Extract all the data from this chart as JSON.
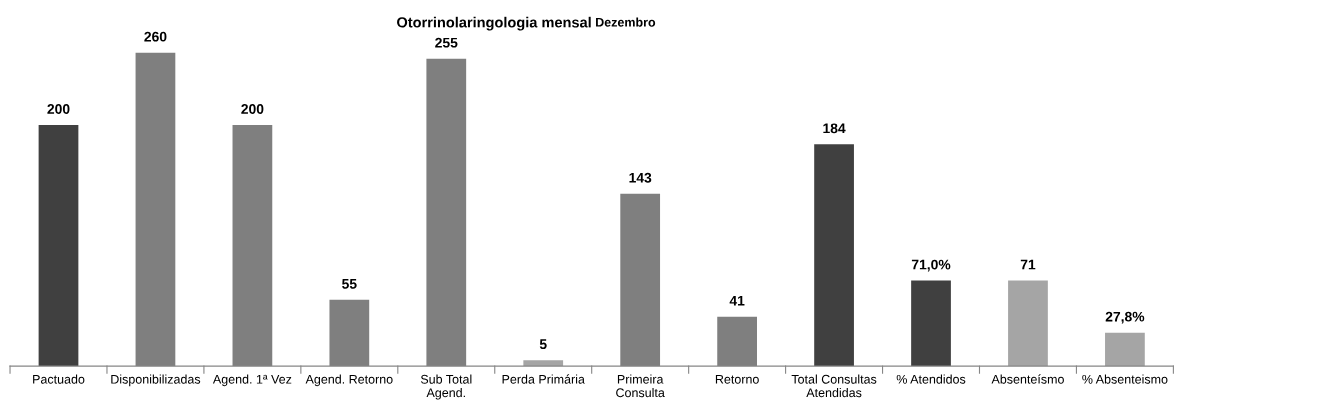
{
  "chart_data": {
    "type": "bar",
    "title": "Otorrinolaringologia mensal",
    "subtitle": "Dezembro",
    "categories": [
      "Pactuado",
      "Disponibilizadas",
      "Agend. 1ª Vez",
      "Agend. Retorno",
      "Sub Total\nAgend.",
      "Perda Primária",
      "Primeira\nConsulta",
      "Retorno",
      "Total Consultas\nAtendidas",
      "% Atendidos",
      "Absenteísmo",
      "% Absenteismo"
    ],
    "values": [
      200,
      260,
      200,
      55,
      255,
      5,
      143,
      41,
      184,
      71.0,
      71,
      27.8
    ],
    "value_labels": [
      "200",
      "260",
      "200",
      "55",
      "255",
      "5",
      "143",
      "41",
      "184",
      "71,0%",
      "71",
      "27,8%"
    ],
    "colors": [
      "#404040",
      "#7f7f7f",
      "#7f7f7f",
      "#7f7f7f",
      "#7f7f7f",
      "#a5a5a5",
      "#7f7f7f",
      "#7f7f7f",
      "#404040",
      "#404040",
      "#a5a5a5",
      "#a5a5a5"
    ],
    "grid": false,
    "legend": false
  }
}
